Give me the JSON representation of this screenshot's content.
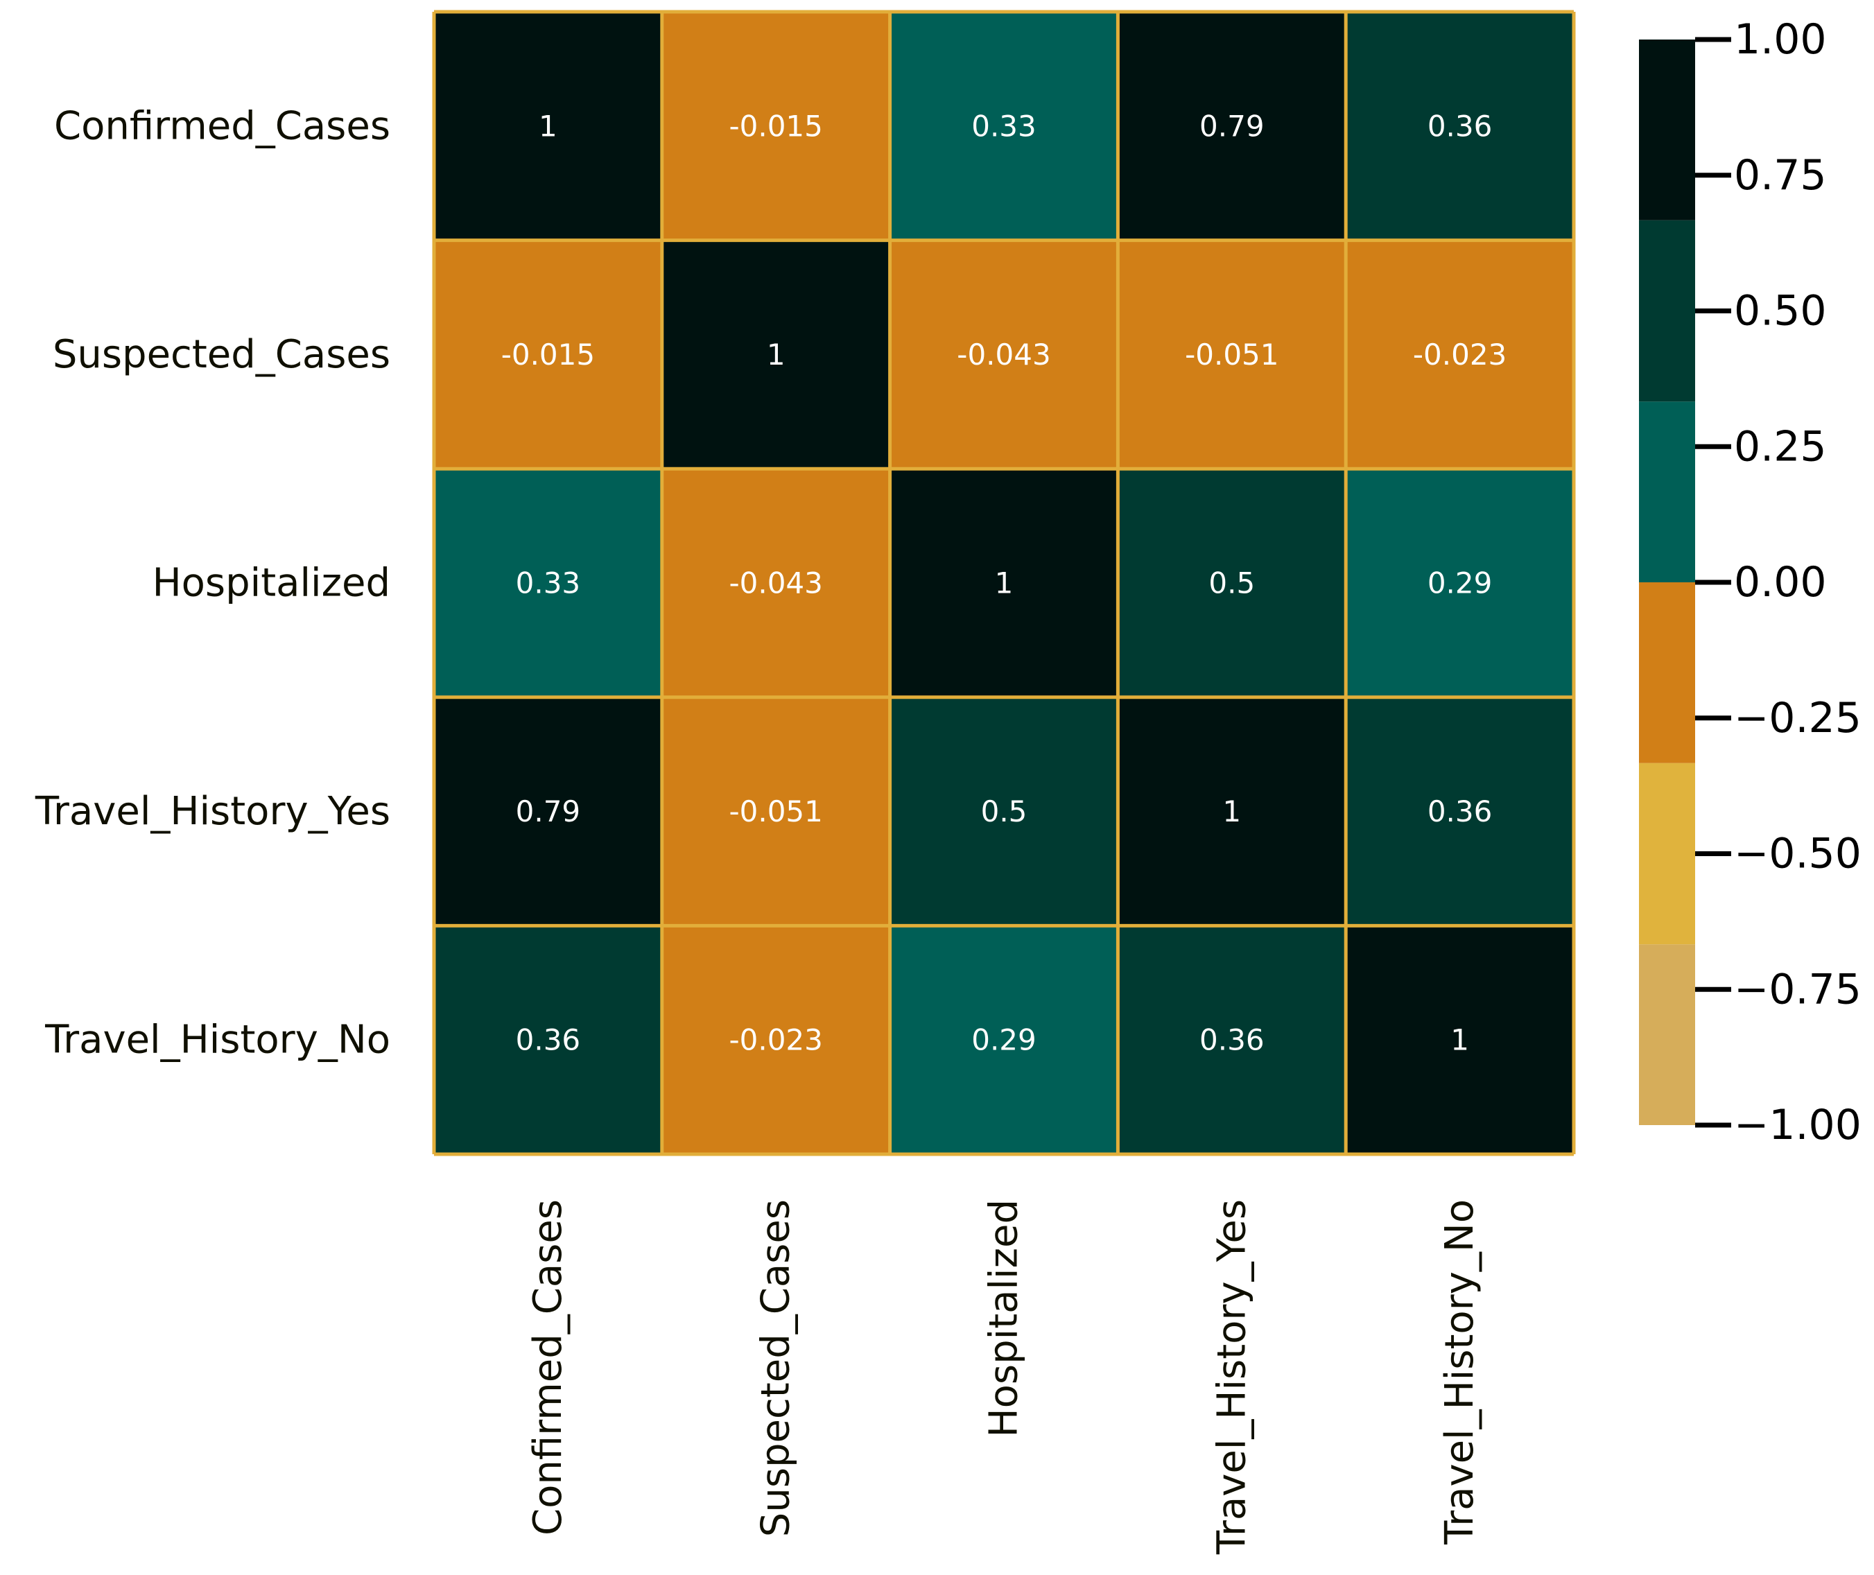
{
  "chart_data": {
    "type": "heatmap",
    "title": "",
    "xlabel": "",
    "ylabel": "",
    "row_labels": [
      "Confirmed_Cases",
      "Suspected_Cases",
      "Hospitalized",
      "Travel_History_Yes",
      "Travel_History_No"
    ],
    "col_labels": [
      "Confirmed_Cases",
      "Suspected_Cases",
      "Hospitalized",
      "Travel_History_Yes",
      "Travel_History_No"
    ],
    "values": [
      [
        1,
        -0.015,
        0.33,
        0.79,
        0.36
      ],
      [
        -0.015,
        1,
        -0.043,
        -0.051,
        -0.023
      ],
      [
        0.33,
        -0.043,
        1,
        0.5,
        0.29
      ],
      [
        0.79,
        -0.051,
        0.5,
        1,
        0.36
      ],
      [
        0.36,
        -0.023,
        0.29,
        0.36,
        1
      ]
    ],
    "annotations": [
      [
        "1",
        "-0.015",
        "0.33",
        "0.79",
        "0.36"
      ],
      [
        "-0.015",
        "1",
        "-0.043",
        "-0.051",
        "-0.023"
      ],
      [
        "0.33",
        "-0.043",
        "1",
        "0.5",
        "0.29"
      ],
      [
        "0.79",
        "-0.051",
        "0.5",
        "1",
        "0.36"
      ],
      [
        "0.36",
        "-0.023",
        "0.29",
        "0.36",
        "1"
      ]
    ],
    "vmin": -1,
    "vmax": 1,
    "colorbar": {
      "ticks": [
        1.0,
        0.75,
        0.5,
        0.25,
        0.0,
        -0.25,
        -0.5,
        -0.75,
        -1.0
      ],
      "tick_labels": [
        "1.00",
        "0.75",
        "0.50",
        "0.25",
        "0.00",
        "−0.25",
        "−0.50",
        "−0.75",
        "−1.00"
      ],
      "bins": [
        {
          "from": -1.0,
          "to": -0.667,
          "color": "#d6ad5a"
        },
        {
          "from": -0.667,
          "to": -0.333,
          "color": "#e0b33d"
        },
        {
          "from": -0.333,
          "to": 0.0,
          "color": "#d17f17"
        },
        {
          "from": 0.0,
          "to": 0.333,
          "color": "#005f56"
        },
        {
          "from": 0.333,
          "to": 0.667,
          "color": "#003a31"
        },
        {
          "from": 0.667,
          "to": 1.0,
          "color": "#001210"
        }
      ]
    },
    "grid_color": "#e2ae3a",
    "annotation_color": "#ffffff",
    "label_color": "#0f0f00"
  }
}
